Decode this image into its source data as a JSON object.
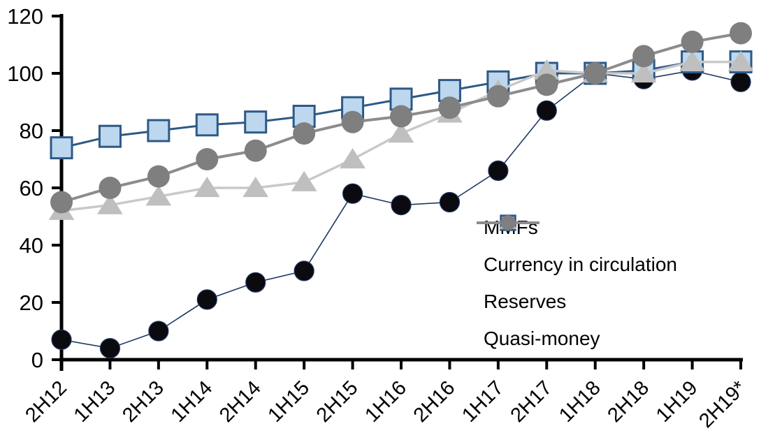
{
  "chart_data": {
    "type": "line",
    "categories": [
      "2H12",
      "1H13",
      "2H13",
      "1H14",
      "2H14",
      "1H15",
      "2H15",
      "1H16",
      "2H16",
      "1H17",
      "2H17",
      "1H18",
      "2H18",
      "1H19",
      "2H19*"
    ],
    "series": [
      {
        "name": "MMFs",
        "marker": "circle",
        "marker_color": "#0a0a0f",
        "marker_border": "#1f3864",
        "marker_border_width": 1.2,
        "marker_size": 14,
        "line_color": "#1f3864",
        "line_width": 1.6,
        "values": [
          7,
          4,
          10,
          21,
          27,
          31,
          58,
          54,
          55,
          66,
          87,
          100,
          98,
          101,
          97
        ]
      },
      {
        "name": "Currency in circulation",
        "marker": "square",
        "marker_color": "#bdd7ee",
        "marker_border": "#2d5986",
        "marker_border_width": 3,
        "marker_size": 15,
        "line_color": "#2d5986",
        "line_width": 3,
        "values": [
          74,
          78,
          80,
          82,
          83,
          85,
          88,
          91,
          94,
          97,
          100,
          100,
          101,
          104,
          104
        ]
      },
      {
        "name": "Reserves",
        "marker": "triangle",
        "marker_color": "#bfbfbf",
        "marker_border": "none",
        "marker_border_width": 0,
        "marker_size": 16,
        "line_color": "#c9c9c9",
        "line_width": 3.5,
        "values": [
          52,
          54,
          57,
          60,
          60,
          62,
          70,
          79,
          86,
          94,
          101,
          100,
          100,
          104,
          104
        ]
      },
      {
        "name": "Quasi-money",
        "marker": "circle",
        "marker_color": "#7f7f7f",
        "marker_border": "none",
        "marker_border_width": 0,
        "marker_size": 16,
        "line_color": "#8c8c8c",
        "line_width": 4,
        "values": [
          55,
          60,
          64,
          70,
          73,
          79,
          83,
          85,
          88,
          92,
          96,
          100,
          106,
          111,
          114
        ]
      }
    ],
    "yticks": [
      0,
      20,
      40,
      60,
      80,
      100,
      120
    ],
    "ylim": [
      0,
      120
    ],
    "xlabel": "",
    "ylabel": "",
    "grid": false,
    "legend_position": "inside-right",
    "axis_color": "#000000",
    "background_color": "#ffffff"
  }
}
